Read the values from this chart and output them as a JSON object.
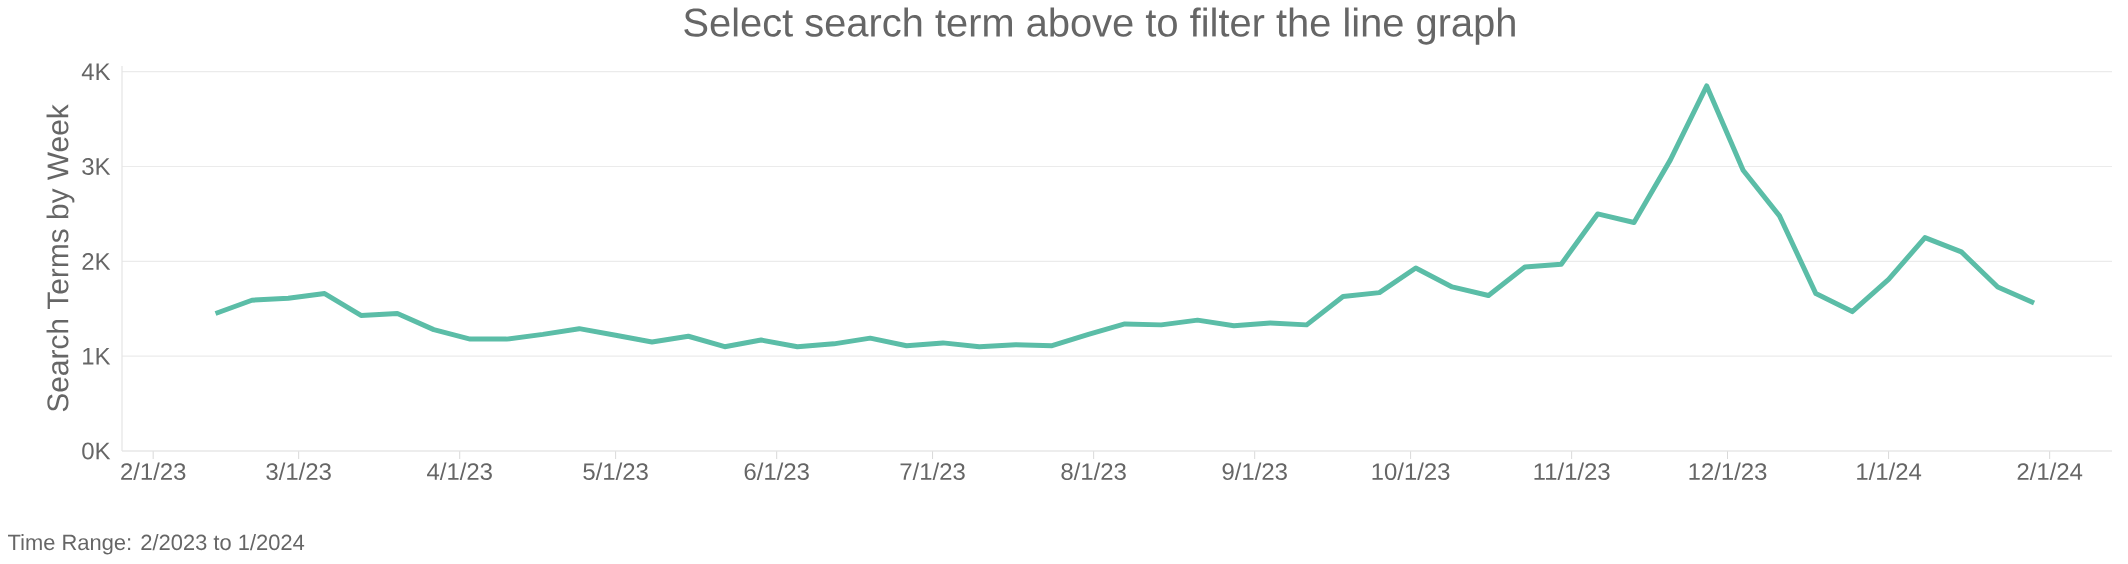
{
  "chart_data": {
    "type": "line",
    "title": "Select search term above to filter the line graph",
    "ylabel": "Search Terms by Week",
    "annotations": [
      "Time Range: 2/2023 to 1/2024"
    ],
    "x": [
      "2023-02-13",
      "2023-02-20",
      "2023-02-27",
      "2023-03-06",
      "2023-03-13",
      "2023-03-20",
      "2023-03-27",
      "2023-04-03",
      "2023-04-10",
      "2023-04-17",
      "2023-04-24",
      "2023-05-01",
      "2023-05-08",
      "2023-05-15",
      "2023-05-22",
      "2023-05-29",
      "2023-06-05",
      "2023-06-12",
      "2023-06-19",
      "2023-06-26",
      "2023-07-03",
      "2023-07-10",
      "2023-07-17",
      "2023-07-24",
      "2023-07-31",
      "2023-08-07",
      "2023-08-14",
      "2023-08-21",
      "2023-08-28",
      "2023-09-04",
      "2023-09-11",
      "2023-09-18",
      "2023-09-25",
      "2023-10-02",
      "2023-10-09",
      "2023-10-16",
      "2023-10-23",
      "2023-10-30",
      "2023-11-06",
      "2023-11-13",
      "2023-11-20",
      "2023-11-27",
      "2023-12-04",
      "2023-12-11",
      "2023-12-18",
      "2023-12-25",
      "2024-01-01",
      "2024-01-08",
      "2024-01-15",
      "2024-01-22",
      "2024-01-29"
    ],
    "values": [
      1450,
      1590,
      1610,
      1660,
      1430,
      1450,
      1280,
      1180,
      1180,
      1230,
      1290,
      1220,
      1150,
      1210,
      1100,
      1170,
      1100,
      1130,
      1190,
      1110,
      1140,
      1100,
      1120,
      1110,
      1230,
      1340,
      1330,
      1380,
      1320,
      1350,
      1330,
      1630,
      1670,
      1930,
      1730,
      1640,
      1940,
      1970,
      2500,
      2410,
      3070,
      3850,
      2960,
      2480,
      1660,
      1470,
      1810,
      2250,
      2100,
      1730,
      1560
    ],
    "color": "#5bbda7",
    "xlim": [
      "2023-01-26",
      "2024-02-13"
    ],
    "xticks": [
      {
        "value": "2023-02-01",
        "label": "2/1/23"
      },
      {
        "value": "2023-03-01",
        "label": "3/1/23"
      },
      {
        "value": "2023-04-01",
        "label": "4/1/23"
      },
      {
        "value": "2023-05-01",
        "label": "5/1/23"
      },
      {
        "value": "2023-06-01",
        "label": "6/1/23"
      },
      {
        "value": "2023-07-01",
        "label": "7/1/23"
      },
      {
        "value": "2023-08-01",
        "label": "8/1/23"
      },
      {
        "value": "2023-09-01",
        "label": "9/1/23"
      },
      {
        "value": "2023-10-01",
        "label": "10/1/23"
      },
      {
        "value": "2023-11-01",
        "label": "11/1/23"
      },
      {
        "value": "2023-12-01",
        "label": "12/1/23"
      },
      {
        "value": "2024-01-01",
        "label": "1/1/24"
      },
      {
        "value": "2024-02-01",
        "label": "2/1/24"
      }
    ],
    "ylim": [
      0,
      4060
    ],
    "yticks": [
      {
        "value": 0,
        "label": "0K"
      },
      {
        "value": 1000,
        "label": "1K"
      },
      {
        "value": 2000,
        "label": "2K"
      },
      {
        "value": 3000,
        "label": "3K"
      },
      {
        "value": 4000,
        "label": "4K"
      }
    ],
    "grid": "y",
    "line_style": "solid"
  }
}
